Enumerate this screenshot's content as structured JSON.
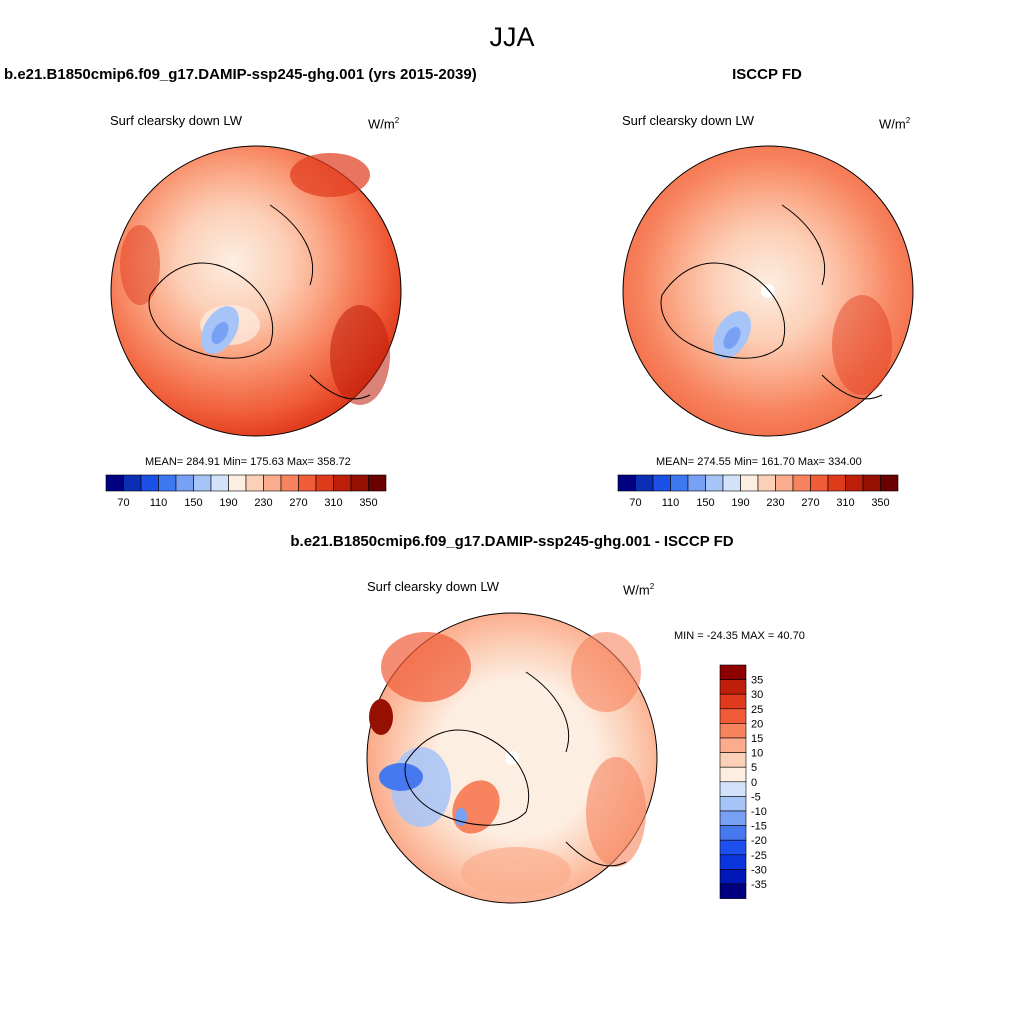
{
  "title": "JJA",
  "colors": {
    "abs_scale": [
      "#000080",
      "#0a2eb4",
      "#1a50e6",
      "#3e78f0",
      "#78a0f5",
      "#a6c4f8",
      "#d2e2fa",
      "#fdeee2",
      "#fcd0b8",
      "#fbac8c",
      "#f7845f",
      "#f05c38",
      "#e03a1c",
      "#be1e0a",
      "#961002",
      "#6b0000"
    ],
    "diff_scale": [
      "#000080",
      "#0018b8",
      "#0a34dc",
      "#1e50f0",
      "#4678f0",
      "#78a0f5",
      "#a6c4f8",
      "#d2e2fa",
      "#fdeee2",
      "#fcd0b8",
      "#fbac8c",
      "#f7845f",
      "#f05c38",
      "#e03a1c",
      "#be1e0a",
      "#8c0000"
    ]
  },
  "chart_data": [
    {
      "type": "heatmap",
      "projection": "north polar stereographic",
      "header": "b.e21.B1850cmip6.f09_g17.DAMIP-ssp245-ghg.001 (yrs 2015-2039)",
      "title": "Surf clearsky down LW",
      "units": "W/m",
      "units_sup": "2",
      "stats": "MEAN= 284.91  Min= 175.63  Max= 358.72",
      "mean": 284.91,
      "min": 175.63,
      "max": 358.72,
      "colorbar_levels": [
        70,
        90,
        110,
        130,
        150,
        170,
        190,
        210,
        230,
        250,
        270,
        290,
        310,
        330,
        350
      ],
      "colorbar_labels": [
        "70",
        "110",
        "150",
        "190",
        "230",
        "270",
        "310",
        "350"
      ]
    },
    {
      "type": "heatmap",
      "projection": "north polar stereographic",
      "header": "ISCCP FD",
      "title": "Surf clearsky down LW",
      "units": "W/m",
      "units_sup": "2",
      "stats": "MEAN= 274.55  Min= 161.70  Max= 334.00",
      "mean": 274.55,
      "min": 161.7,
      "max": 334.0,
      "colorbar_levels": [
        70,
        90,
        110,
        130,
        150,
        170,
        190,
        210,
        230,
        250,
        270,
        290,
        310,
        330,
        350
      ],
      "colorbar_labels": [
        "70",
        "110",
        "150",
        "190",
        "230",
        "270",
        "310",
        "350"
      ]
    },
    {
      "type": "heatmap",
      "projection": "north polar stereographic",
      "header": "b.e21.B1850cmip6.f09_g17.DAMIP-ssp245-ghg.001 - ISCCP FD",
      "title": "Surf clearsky down LW",
      "units": "W/m",
      "units_sup": "2",
      "stats": "MIN = -24.35 MAX =  40.70",
      "min": -24.35,
      "max": 40.7,
      "colorbar_levels": [
        -35,
        -30,
        -25,
        -20,
        -15,
        -10,
        -5,
        0,
        5,
        10,
        15,
        20,
        25,
        30,
        35
      ],
      "colorbar_labels": [
        "35",
        "30",
        "25",
        "20",
        "15",
        "10",
        "5",
        "0",
        "-5",
        "-10",
        "-15",
        "-20",
        "-25",
        "-30",
        "-35"
      ]
    }
  ]
}
